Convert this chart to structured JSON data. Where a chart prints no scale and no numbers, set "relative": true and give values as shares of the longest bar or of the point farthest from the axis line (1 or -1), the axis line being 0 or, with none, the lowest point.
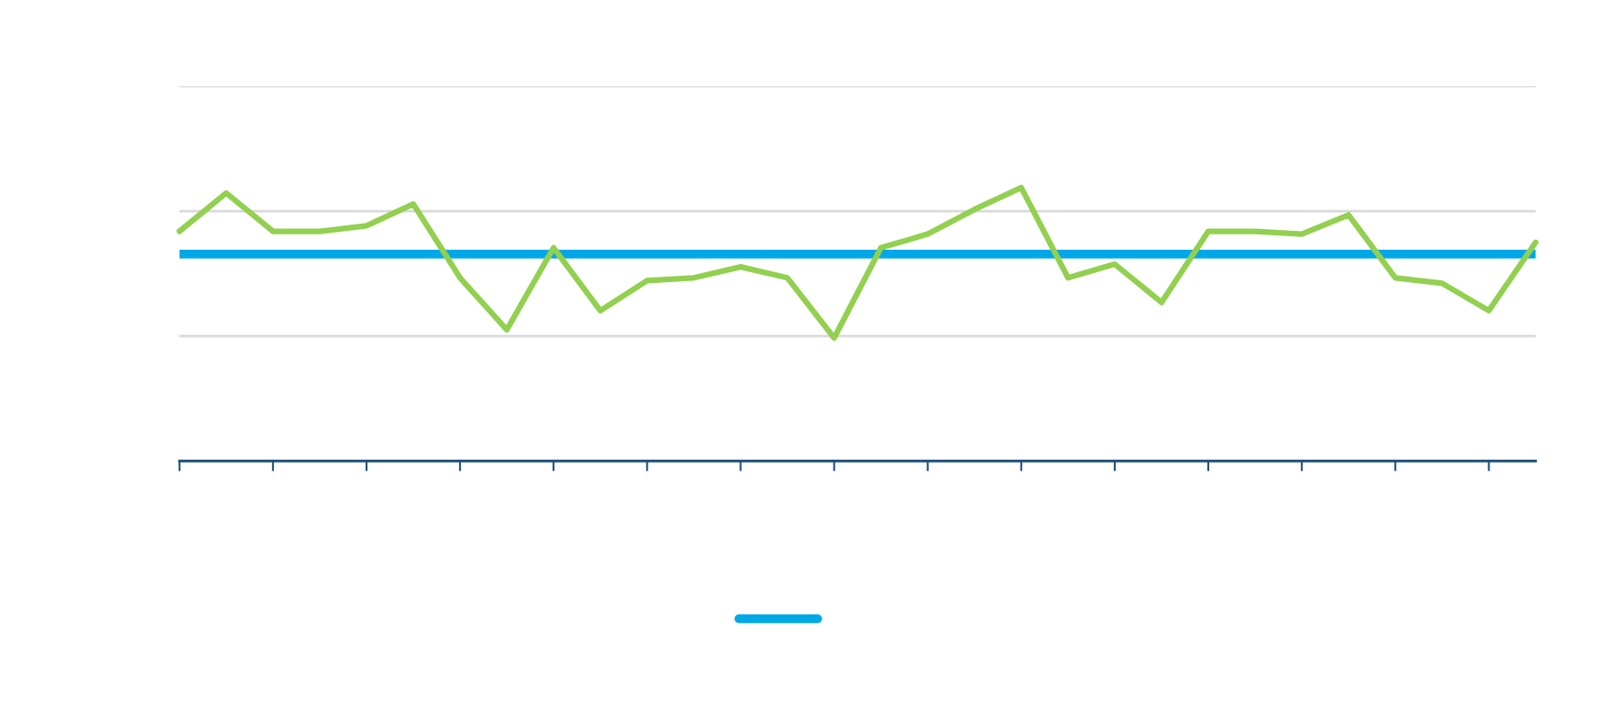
{
  "chart_data": {
    "type": "line",
    "relative": true,
    "categories": [
      null,
      null,
      null,
      null,
      null,
      null,
      null,
      null,
      null,
      null,
      null,
      null,
      null,
      null,
      null,
      null,
      null,
      null,
      null,
      null,
      null,
      null,
      null,
      null,
      null,
      null,
      null,
      null,
      null,
      null
    ],
    "series": [
      {
        "color": "#92d050",
        "values": [
          0.84,
          0.98,
          0.84,
          0.84,
          0.86,
          0.94,
          0.67,
          0.48,
          0.78,
          0.55,
          0.66,
          0.67,
          0.71,
          0.67,
          0.45,
          0.78,
          0.83,
          0.92,
          1,
          0.67,
          0.72,
          0.58,
          0.84,
          0.84,
          0.83,
          0.9,
          0.67,
          0.65,
          0.55,
          0.8
        ]
      }
    ],
    "ref_lines": [
      {
        "axis": "y",
        "value": 0.757,
        "color": "#00a8e8"
      },
      {
        "axis": "y",
        "value": 0.457,
        "color": "#d9d9d9"
      },
      {
        "axis": "y",
        "value": 0.914,
        "color": "#d9d9d9"
      },
      {
        "axis": "y",
        "value": 1.371,
        "color": "#d9d9d9"
      }
    ],
    "marker": "none",
    "line_style": "solid"
  }
}
